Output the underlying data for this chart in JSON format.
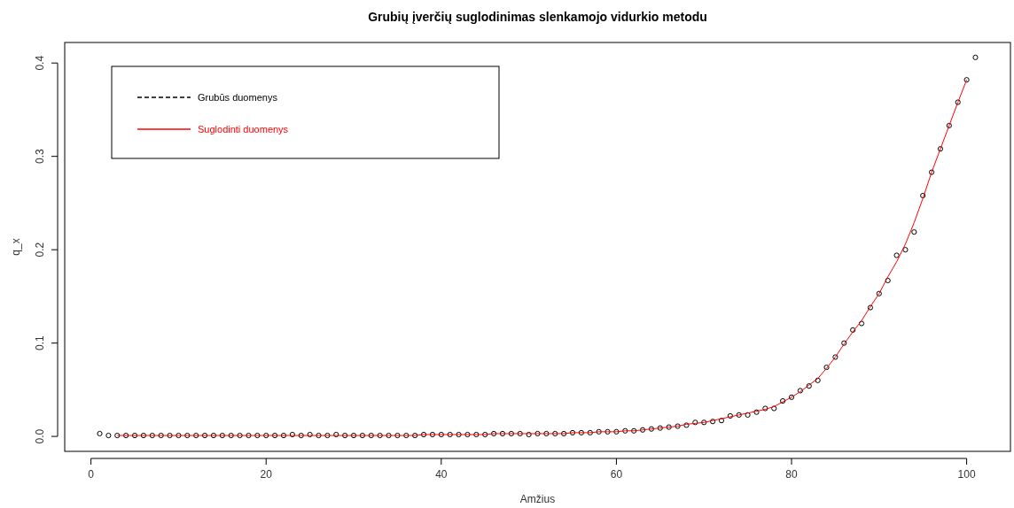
{
  "chart_data": {
    "type": "scatter",
    "title": "Grubių įverčių suglodinimas slenkamojo vidurkio metodu",
    "xlabel": "Amžius",
    "ylabel": "q_x",
    "xlim": [
      -3,
      105
    ],
    "ylim": [
      -0.016,
      0.422
    ],
    "xticks": [
      0,
      20,
      40,
      60,
      80,
      100
    ],
    "yticks": [
      {
        "value": 0,
        "label": "0.0"
      },
      0.1,
      0.2,
      0.3,
      0.4
    ],
    "grid": false,
    "legend": "top left",
    "series": [
      {
        "name": "Grubūs duomenys",
        "type": "scatter",
        "color": "#000000",
        "marker": "circle",
        "line_style": "dashed",
        "x": [
          1,
          2,
          3,
          4,
          5,
          6,
          7,
          8,
          9,
          10,
          11,
          12,
          13,
          14,
          15,
          16,
          17,
          18,
          19,
          20,
          21,
          22,
          23,
          24,
          25,
          26,
          27,
          28,
          29,
          30,
          31,
          32,
          33,
          34,
          35,
          36,
          37,
          38,
          39,
          40,
          41,
          42,
          43,
          44,
          45,
          46,
          47,
          48,
          49,
          50,
          51,
          52,
          53,
          54,
          55,
          56,
          57,
          58,
          59,
          60,
          61,
          62,
          63,
          64,
          65,
          66,
          67,
          68,
          69,
          70,
          71,
          72,
          73,
          74,
          75,
          76,
          77,
          78,
          79,
          80,
          81,
          82,
          83,
          84,
          85,
          86,
          87,
          88,
          89,
          90,
          91,
          92,
          93,
          94,
          95,
          96,
          97,
          98,
          99,
          100,
          101
        ],
        "values": [
          0.003,
          0.001,
          0.001,
          0.001,
          0.001,
          0.001,
          0.001,
          0.001,
          0.001,
          0.001,
          0.001,
          0.001,
          0.001,
          0.001,
          0.001,
          0.001,
          0.001,
          0.001,
          0.001,
          0.001,
          0.001,
          0.001,
          0.002,
          0.001,
          0.002,
          0.001,
          0.001,
          0.002,
          0.001,
          0.001,
          0.001,
          0.001,
          0.001,
          0.001,
          0.001,
          0.001,
          0.001,
          0.002,
          0.002,
          0.002,
          0.002,
          0.002,
          0.002,
          0.002,
          0.002,
          0.003,
          0.003,
          0.003,
          0.003,
          0.002,
          0.003,
          0.003,
          0.003,
          0.003,
          0.004,
          0.004,
          0.004,
          0.005,
          0.005,
          0.005,
          0.006,
          0.006,
          0.007,
          0.008,
          0.009,
          0.01,
          0.011,
          0.012,
          0.015,
          0.015,
          0.016,
          0.017,
          0.022,
          0.023,
          0.023,
          0.026,
          0.03,
          0.03,
          0.038,
          0.042,
          0.049,
          0.054,
          0.06,
          0.074,
          0.085,
          0.1,
          0.114,
          0.121,
          0.138,
          0.153,
          0.167,
          0.194,
          0.2,
          0.219,
          0.258,
          0.283,
          0.308,
          0.333,
          0.358,
          0.382,
          0.406
        ]
      },
      {
        "name": "Suglodinti duomenys",
        "type": "line",
        "color": "#ff0000",
        "marker": "none",
        "line_style": "solid",
        "x": [
          3,
          4,
          5,
          6,
          7,
          8,
          9,
          10,
          11,
          12,
          13,
          14,
          15,
          16,
          17,
          18,
          19,
          20,
          21,
          22,
          23,
          24,
          25,
          26,
          27,
          28,
          29,
          30,
          31,
          32,
          33,
          34,
          35,
          36,
          37,
          38,
          39,
          40,
          41,
          42,
          43,
          44,
          45,
          46,
          47,
          48,
          49,
          50,
          51,
          52,
          53,
          54,
          55,
          56,
          57,
          58,
          59,
          60,
          61,
          62,
          63,
          64,
          65,
          66,
          67,
          68,
          69,
          70,
          71,
          72,
          73,
          74,
          75,
          76,
          77,
          78,
          79,
          80,
          81,
          82,
          83,
          84,
          85,
          86,
          87,
          88,
          89,
          90,
          91,
          92,
          93,
          94,
          95,
          96,
          97,
          98,
          99,
          100
        ],
        "values": [
          0.001,
          0.001,
          0.001,
          0.001,
          0.001,
          0.001,
          0.001,
          0.001,
          0.001,
          0.001,
          0.001,
          0.001,
          0.001,
          0.001,
          0.001,
          0.001,
          0.001,
          0.001,
          0.001,
          0.001,
          0.001,
          0.001,
          0.001,
          0.001,
          0.001,
          0.001,
          0.001,
          0.001,
          0.001,
          0.001,
          0.001,
          0.001,
          0.001,
          0.001,
          0.001,
          0.002,
          0.002,
          0.002,
          0.002,
          0.002,
          0.002,
          0.002,
          0.002,
          0.003,
          0.003,
          0.003,
          0.003,
          0.003,
          0.003,
          0.003,
          0.003,
          0.003,
          0.004,
          0.004,
          0.004,
          0.005,
          0.005,
          0.005,
          0.006,
          0.006,
          0.007,
          0.008,
          0.009,
          0.01,
          0.011,
          0.013,
          0.014,
          0.015,
          0.017,
          0.019,
          0.021,
          0.023,
          0.025,
          0.027,
          0.029,
          0.032,
          0.037,
          0.042,
          0.048,
          0.055,
          0.062,
          0.073,
          0.085,
          0.099,
          0.112,
          0.124,
          0.139,
          0.153,
          0.171,
          0.187,
          0.206,
          0.229,
          0.255,
          0.283,
          0.308,
          0.333,
          0.358,
          0.382
        ]
      }
    ]
  }
}
